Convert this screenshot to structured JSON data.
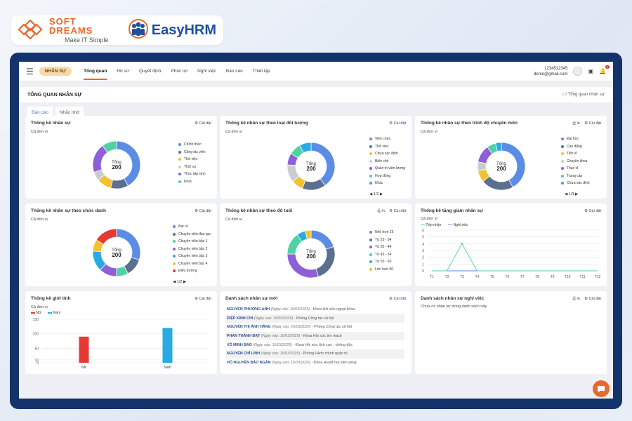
{
  "brand": {
    "softdreams_name": "SOFT DREAMS",
    "softdreams_slogan": "Make IT Simple",
    "easyhrm_name": "EasyHRM"
  },
  "topnav": {
    "module_badge": "NHÂN SỰ",
    "items": [
      "Tổng quan",
      "Hồ sơ",
      "Quyết định",
      "Phúc lợi",
      "Nghỉ việc",
      "Báo cáo",
      "Thiết lập"
    ],
    "active_index": 0,
    "user_code": "1234512345",
    "user_email": "demo@gmail.com",
    "notif_badge": "8"
  },
  "page": {
    "title": "TỔNG QUAN NHÂN SỰ",
    "breadcrumb": "Tổng quan nhân sự",
    "tabs": [
      "Báo cáo",
      "Nhắc nhở"
    ]
  },
  "common": {
    "unit": "Cả đơn vị",
    "settings": "Cài đặt",
    "print": "In",
    "total_label": "Tổng",
    "page_indicator": "1/2",
    "page_indicator_3": "1/3"
  },
  "cards": {
    "c1": {
      "title": "Thống kê nhân sự",
      "total": "200",
      "legend": [
        "Chính thức",
        "Cộng tác viên",
        "Thử việc",
        "Thời vụ",
        "Thực tập sinh",
        "Khác"
      ]
    },
    "c2": {
      "title": "Thống kê nhân sự theo loại đối tượng",
      "total": "200",
      "legend": [
        "Viên chức",
        "Thử việc",
        "Chưa xác định",
        "Biên chế",
        "Quản trị viên lượng",
        "Hợp đồng",
        "Khác"
      ]
    },
    "c3": {
      "title": "Thống kê nhân sự theo trình độ chuyên môn",
      "total": "200",
      "legend": [
        "Đại học",
        "Cao đẳng",
        "Tiến sĩ",
        "Chuyên khoa",
        "Thạc sĩ",
        "Trung cấp",
        "Chưa xác định"
      ]
    },
    "c4": {
      "title": "Thống kê nhân sự theo chức danh",
      "total": "200",
      "legend": [
        "Bác sĩ",
        "Chuyên viên đào tạo",
        "Chuyên viên bậc 1",
        "Chuyên viên bậc 2",
        "Chuyên viên bậc 3",
        "Chuyên viên bậc 4",
        "Điều dưỡng"
      ]
    },
    "c5": {
      "title": "Thống kê nhân sự theo độ tuổi",
      "total": "200",
      "legend": [
        "Nhỏ hơn 25",
        "Từ 25 - 34",
        "Từ 35 - 44",
        "Từ 45 - 54",
        "Từ 55 - 60",
        "Lớn hơn 60"
      ]
    },
    "c6": {
      "title": "Thống kê tăng giảm nhân sự",
      "legend": [
        "Tiếp nhận",
        "Nghỉ việc"
      ]
    },
    "c7": {
      "title": "Thống kê giới tính",
      "legend": [
        "Nữ",
        "Nam"
      ]
    },
    "c8": {
      "title": "Danh sách nhân sự mới",
      "date_label": "(Ngày vào: 16/03/2025)",
      "rows": [
        {
          "name": "NGUYỄN PHƯỢNG ANH",
          "dept": "- Khoa Hồi sức ngoại khoa"
        },
        {
          "name": "DIỆP KINH CHI",
          "dept": "- Phòng Công tác xã hội"
        },
        {
          "name": "NGUYỄN THỊ ÁNH HẰNG",
          "dept": "- Phòng Công tác xã hội"
        },
        {
          "name": "PHAN THÀNH ĐẠT",
          "dept": "- Khoa Hồi sức tim mạch"
        },
        {
          "name": "VÕ MINH BẢO",
          "dept": "- Khoa Hồi sức tích cực - chống độc"
        },
        {
          "name": "NGUYỄN CHÍ LINH",
          "dept": "- Phòng Hành chính quản trị"
        },
        {
          "name": "HỒ NGUYỄN BẢO NGÂN",
          "dept": "- Khoa Huyết học lâm sàng"
        }
      ]
    },
    "c9": {
      "title": "Danh sách nhân sự nghỉ việc",
      "empty": "Chưa có nhân sự trong danh sách này"
    }
  },
  "colors": {
    "accent": "#e8692c",
    "navy": "#14336b",
    "blue": "#5b8de6",
    "slate": "#5b6f8f",
    "yellow": "#f2c12e",
    "gray": "#c9ccd2",
    "purple": "#8e5fd6",
    "teal": "#4fd1a5",
    "red": "#e53935",
    "cyan": "#29abe2"
  },
  "chart_data": [
    {
      "type": "pie",
      "title": "Thống kê nhân sự",
      "labels": [
        "Chính thức",
        "Cộng tác viên",
        "Thử việc",
        "Thời vụ",
        "Thực tập sinh",
        "Khác"
      ],
      "values": [
        42,
        12,
        10,
        6,
        20,
        10
      ],
      "colors": [
        "#5b8de6",
        "#5b6f8f",
        "#f2c12e",
        "#c9ccd2",
        "#8e5fd6",
        "#4fd1a5"
      ]
    },
    {
      "type": "pie",
      "title": "Thống kê nhân sự theo loại đối tượng",
      "labels": [
        "Viên chức",
        "Thử việc",
        "Chưa xác định",
        "Biên chế",
        "Quản trị viên lượng",
        "Hợp đồng",
        "Khác"
      ],
      "values": [
        40,
        16,
        8,
        12,
        8,
        8,
        8
      ],
      "colors": [
        "#5b8de6",
        "#5b6f8f",
        "#f2c12e",
        "#c9ccd2",
        "#8e5fd6",
        "#4fd1a5",
        "#29abe2"
      ]
    },
    {
      "type": "pie",
      "title": "Thống kê nhân sự theo trình độ chuyên môn",
      "labels": [
        "Đại học",
        "Cao đẳng",
        "Tiến sĩ",
        "Chuyên khoa",
        "Thạc sĩ",
        "Trung cấp",
        "Chưa xác định"
      ],
      "values": [
        42,
        22,
        8,
        6,
        12,
        6,
        4
      ],
      "colors": [
        "#5b8de6",
        "#5b6f8f",
        "#f2c12e",
        "#c9ccd2",
        "#8e5fd6",
        "#4fd1a5",
        "#29abe2"
      ]
    },
    {
      "type": "pie",
      "title": "Thống kê nhân sự theo chức danh",
      "labels": [
        "Bác sĩ",
        "Chuyên viên đào tạo",
        "Chuyên viên bậc 1",
        "Chuyên viên bậc 2",
        "Chuyên viên bậc 3",
        "Chuyên viên bậc 4",
        "Điều dưỡng"
      ],
      "values": [
        30,
        12,
        8,
        12,
        14,
        8,
        16
      ],
      "colors": [
        "#5b8de6",
        "#5b6f8f",
        "#4fd1a5",
        "#8e5fd6",
        "#29abe2",
        "#f2c12e",
        "#e53935"
      ]
    },
    {
      "type": "pie",
      "title": "Thống kê nhân sự theo độ tuổi",
      "labels": [
        "Nhỏ hơn 25",
        "Từ 25 - 34",
        "Từ 35 - 44",
        "Từ 45 - 54",
        "Từ 55 - 60",
        "Lớn hơn 60"
      ],
      "values": [
        20,
        25,
        30,
        15,
        6,
        4
      ],
      "colors": [
        "#5b8de6",
        "#5b6f8f",
        "#8e5fd6",
        "#4fd1a5",
        "#29abe2",
        "#f2c12e"
      ]
    },
    {
      "type": "line",
      "title": "Thống kê tăng giảm nhân sự",
      "x": [
        "T1",
        "T2",
        "T3",
        "T4",
        "T5",
        "T6",
        "T7",
        "T8",
        "T9",
        "T10",
        "T11",
        "T12"
      ],
      "yticks": [
        0,
        1,
        2,
        3,
        4,
        5,
        6
      ],
      "ylim": [
        0,
        6
      ],
      "series": [
        {
          "name": "Tiếp nhận",
          "values": [
            0,
            0,
            4,
            0,
            0,
            0,
            0,
            0,
            0,
            0,
            0,
            0
          ],
          "color": "#4fd1a5"
        },
        {
          "name": "Nghỉ việc",
          "values": [
            0,
            0,
            0,
            0,
            0,
            0,
            0,
            0,
            0,
            0,
            0,
            0
          ],
          "color": "#5b8de6"
        }
      ]
    },
    {
      "type": "bar",
      "title": "Thống kê giới tính",
      "categories": [
        "Nữ",
        "Nam"
      ],
      "values": [
        90,
        120
      ],
      "colors": [
        "#e53935",
        "#29abe2"
      ],
      "yticks": [
        0,
        10,
        50,
        100,
        150
      ],
      "ylim": [
        0,
        150
      ]
    }
  ]
}
